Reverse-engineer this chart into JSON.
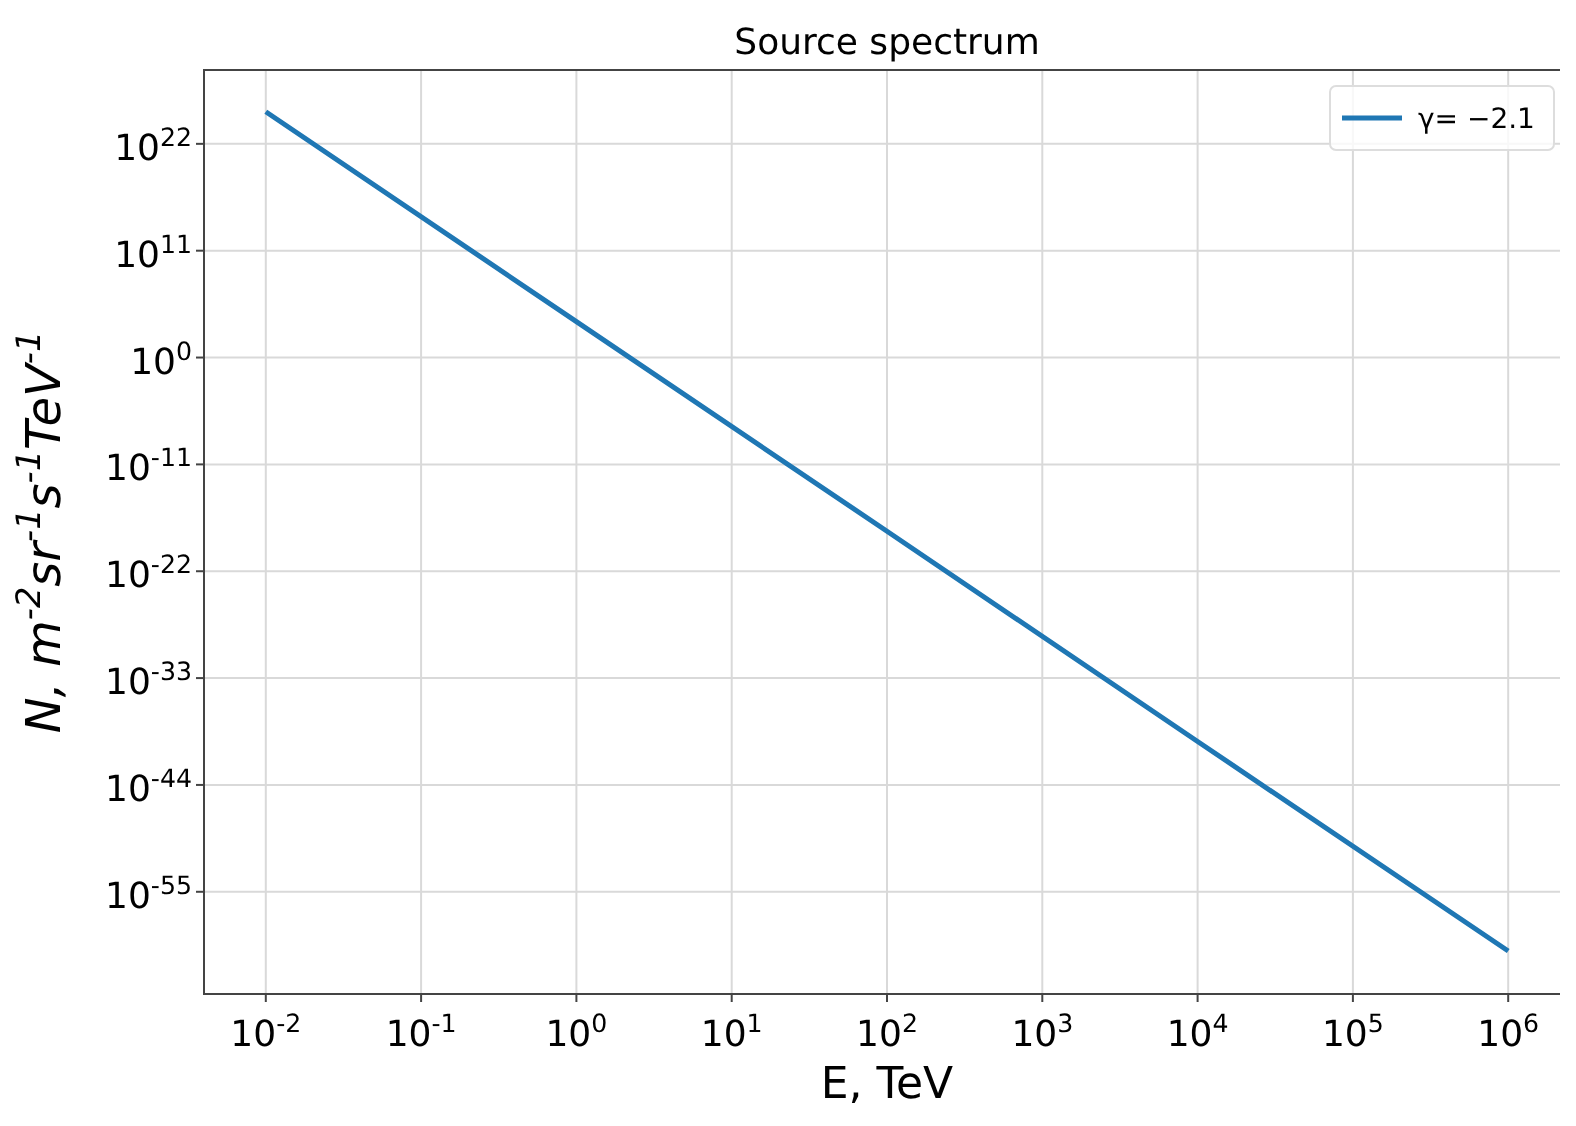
{
  "chart_data": {
    "type": "line",
    "title": "Source spectrum",
    "xlabel": "E, TeV",
    "ylabel": "N, m$^{-2}$sr$^{-1}$s$^{-1}$TeV$^{-1}$",
    "log": "xy",
    "grid": true,
    "legend": "top right",
    "xlim": [
      0.004,
      2500000.0
    ],
    "ylim": [
      3e-66,
      4e+29
    ],
    "xticks": [
      {
        "value": 0.01,
        "label": "10$^{-2}$"
      },
      {
        "value": 0.1,
        "label": "10$^{-1}$"
      },
      {
        "value": 1,
        "label": "10$^{0}$"
      },
      {
        "value": 10,
        "label": "10$^{1}$"
      },
      {
        "value": 100,
        "label": "10$^{2}$"
      },
      {
        "value": 1000,
        "label": "10$^{3}$"
      },
      {
        "value": 10000,
        "label": "10$^{4}$"
      },
      {
        "value": 100000,
        "label": "10$^{5}$"
      },
      {
        "value": 1000000,
        "label": "10$^{6}$"
      }
    ],
    "yticks": [
      {
        "value": 1e-55,
        "label": "10$^{-55}$"
      },
      {
        "value": 1e-44,
        "label": "10$^{-44}$"
      },
      {
        "value": 1e-33,
        "label": "10$^{-33}$"
      },
      {
        "value": 1e-22,
        "label": "10$^{-22}$"
      },
      {
        "value": 1e-11,
        "label": "10$^{-11}$"
      },
      {
        "value": 1,
        "label": "10$^{0}$"
      },
      {
        "value": 100000000000.0,
        "label": "10$^{11}$"
      },
      {
        "value": 1e+22,
        "label": "10$^{22}$"
      }
    ],
    "series": [
      {
        "name": "γ= −2.1",
        "color": "#1f77b4",
        "x": [
          0.01,
          1,
          100,
          10000,
          1000000
        ],
        "values": [
          2e+25,
          5000.0,
          1.3e-18,
          3e-40,
          8e-62
        ]
      }
    ]
  }
}
